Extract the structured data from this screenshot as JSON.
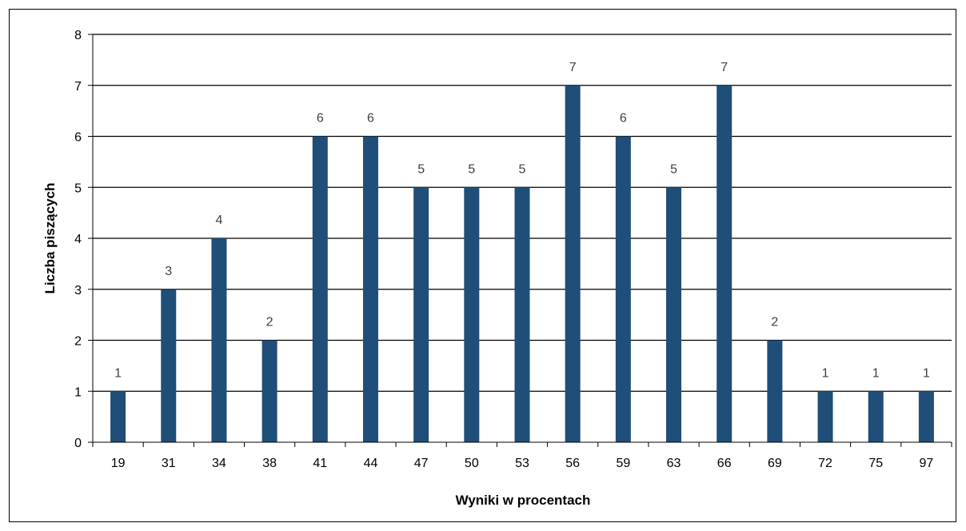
{
  "chart_data": {
    "type": "bar",
    "title": "",
    "xlabel": "Wyniki w procentach",
    "ylabel": "Liczba piszących",
    "categories": [
      "19",
      "31",
      "34",
      "38",
      "41",
      "44",
      "47",
      "50",
      "53",
      "56",
      "59",
      "63",
      "66",
      "69",
      "72",
      "75",
      "97"
    ],
    "values": [
      1,
      3,
      4,
      2,
      6,
      6,
      5,
      5,
      5,
      7,
      6,
      5,
      7,
      2,
      1,
      1,
      1
    ],
    "ylim": [
      0,
      8
    ],
    "yticks": [
      0,
      1,
      2,
      3,
      4,
      5,
      6,
      7,
      8
    ],
    "grid": true,
    "data_labels": true,
    "bar_color": "#1F4E79"
  }
}
